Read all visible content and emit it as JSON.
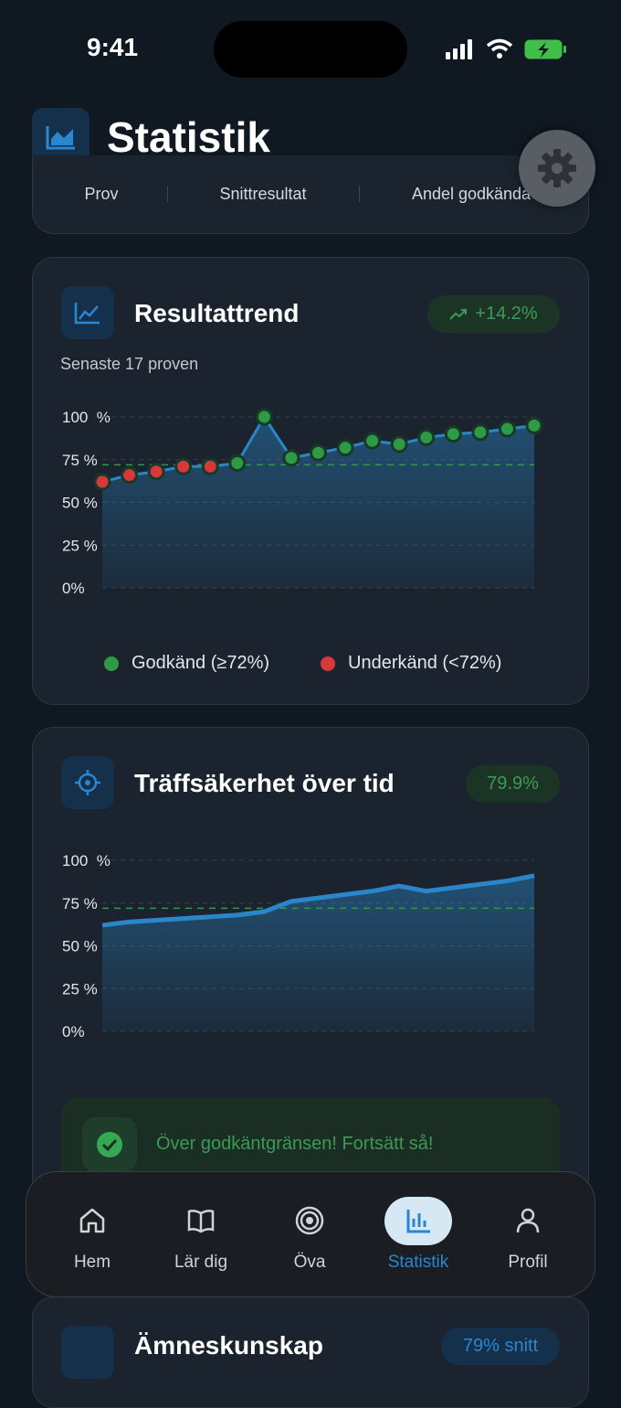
{
  "status_bar": {
    "time": "9:41"
  },
  "header": {
    "title": "Statistik"
  },
  "summary": {
    "labels": [
      "Prov",
      "Snittresultat",
      "Andel godkända"
    ]
  },
  "chart_data": [
    {
      "type": "line",
      "title": "Resultattrend",
      "badge": "+14.2%",
      "subtitle": "Senaste 17 proven",
      "values": [
        62,
        66,
        68,
        71,
        71,
        73,
        100,
        76,
        79,
        82,
        86,
        84,
        88,
        90,
        91,
        93,
        95
      ],
      "line_color": "#2b86c9",
      "markers": true,
      "threshold": 72,
      "ylim": [
        0,
        100
      ],
      "yticks": [
        {
          "value": 100,
          "label": "100  %"
        },
        {
          "value": 75,
          "label": "75 %"
        },
        {
          "value": 50,
          "label": "50 %"
        },
        {
          "value": 25,
          "label": "25 %"
        },
        {
          "value": 0,
          "label": "0%"
        }
      ],
      "grid": true,
      "legend": [
        {
          "name": "Godkänd (≥72%)",
          "color": "#2f9a46"
        },
        {
          "name": "Underkänd (<72%)",
          "color": "#d8383a"
        }
      ]
    },
    {
      "type": "line",
      "title": "Träffsäkerhet över tid",
      "badge": "79.9%",
      "message": "Över godkäntgränsen! Fortsätt så!",
      "values": [
        62,
        64,
        65,
        66,
        67,
        68,
        70,
        76,
        78,
        80,
        82,
        85,
        82,
        84,
        86,
        88,
        91
      ],
      "line_color": "#2b86c9",
      "markers": false,
      "threshold": 72,
      "ylim": [
        0,
        100
      ],
      "yticks": [
        {
          "value": 100,
          "label": "100  %"
        },
        {
          "value": 75,
          "label": "75 %"
        },
        {
          "value": 50,
          "label": "50 %"
        },
        {
          "value": 25,
          "label": "25 %"
        },
        {
          "value": 0,
          "label": "0%"
        }
      ],
      "grid": true
    }
  ],
  "nav": {
    "items": [
      "Hem",
      "Lär dig",
      "Öva",
      "Statistik",
      "Profil"
    ],
    "active": 3
  },
  "subject_card": {
    "title": "Ämneskunskap",
    "badge": "79% snitt"
  }
}
